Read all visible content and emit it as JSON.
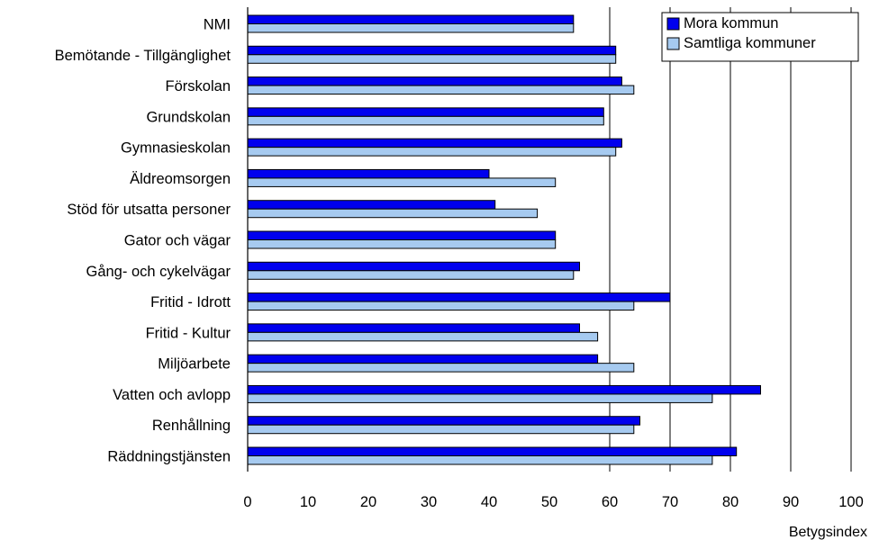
{
  "chart_data": {
    "type": "bar",
    "orientation": "horizontal",
    "categories": [
      "NMI",
      "Bemötande - Tillgänglighet",
      "Förskolan",
      "Grundskolan",
      "Gymnasieskolan",
      "Äldreomsorgen",
      "Stöd för utsatta personer",
      "Gator och vägar",
      "Gång- och cykelvägar",
      "Fritid - Idrott",
      "Fritid - Kultur",
      "Miljöarbete",
      "Vatten och avlopp",
      "Renhållning",
      "Räddningstjänsten"
    ],
    "series": [
      {
        "name": "Mora kommun",
        "color": "#0000ee",
        "values": [
          54,
          61,
          62,
          59,
          62,
          40,
          41,
          51,
          55,
          70,
          55,
          58,
          85,
          65,
          81
        ]
      },
      {
        "name": "Samtliga kommuner",
        "color": "#a6caf0",
        "values": [
          54,
          61,
          64,
          59,
          61,
          51,
          48,
          51,
          54,
          64,
          58,
          64,
          77,
          64,
          77
        ]
      }
    ],
    "xlim": [
      0,
      100
    ],
    "xticks": [
      0,
      10,
      20,
      30,
      40,
      50,
      60,
      70,
      80,
      90,
      100
    ],
    "xlabel": "Betygsindex",
    "gridlines": "vertical-major-from-60",
    "legend": "top-right"
  }
}
